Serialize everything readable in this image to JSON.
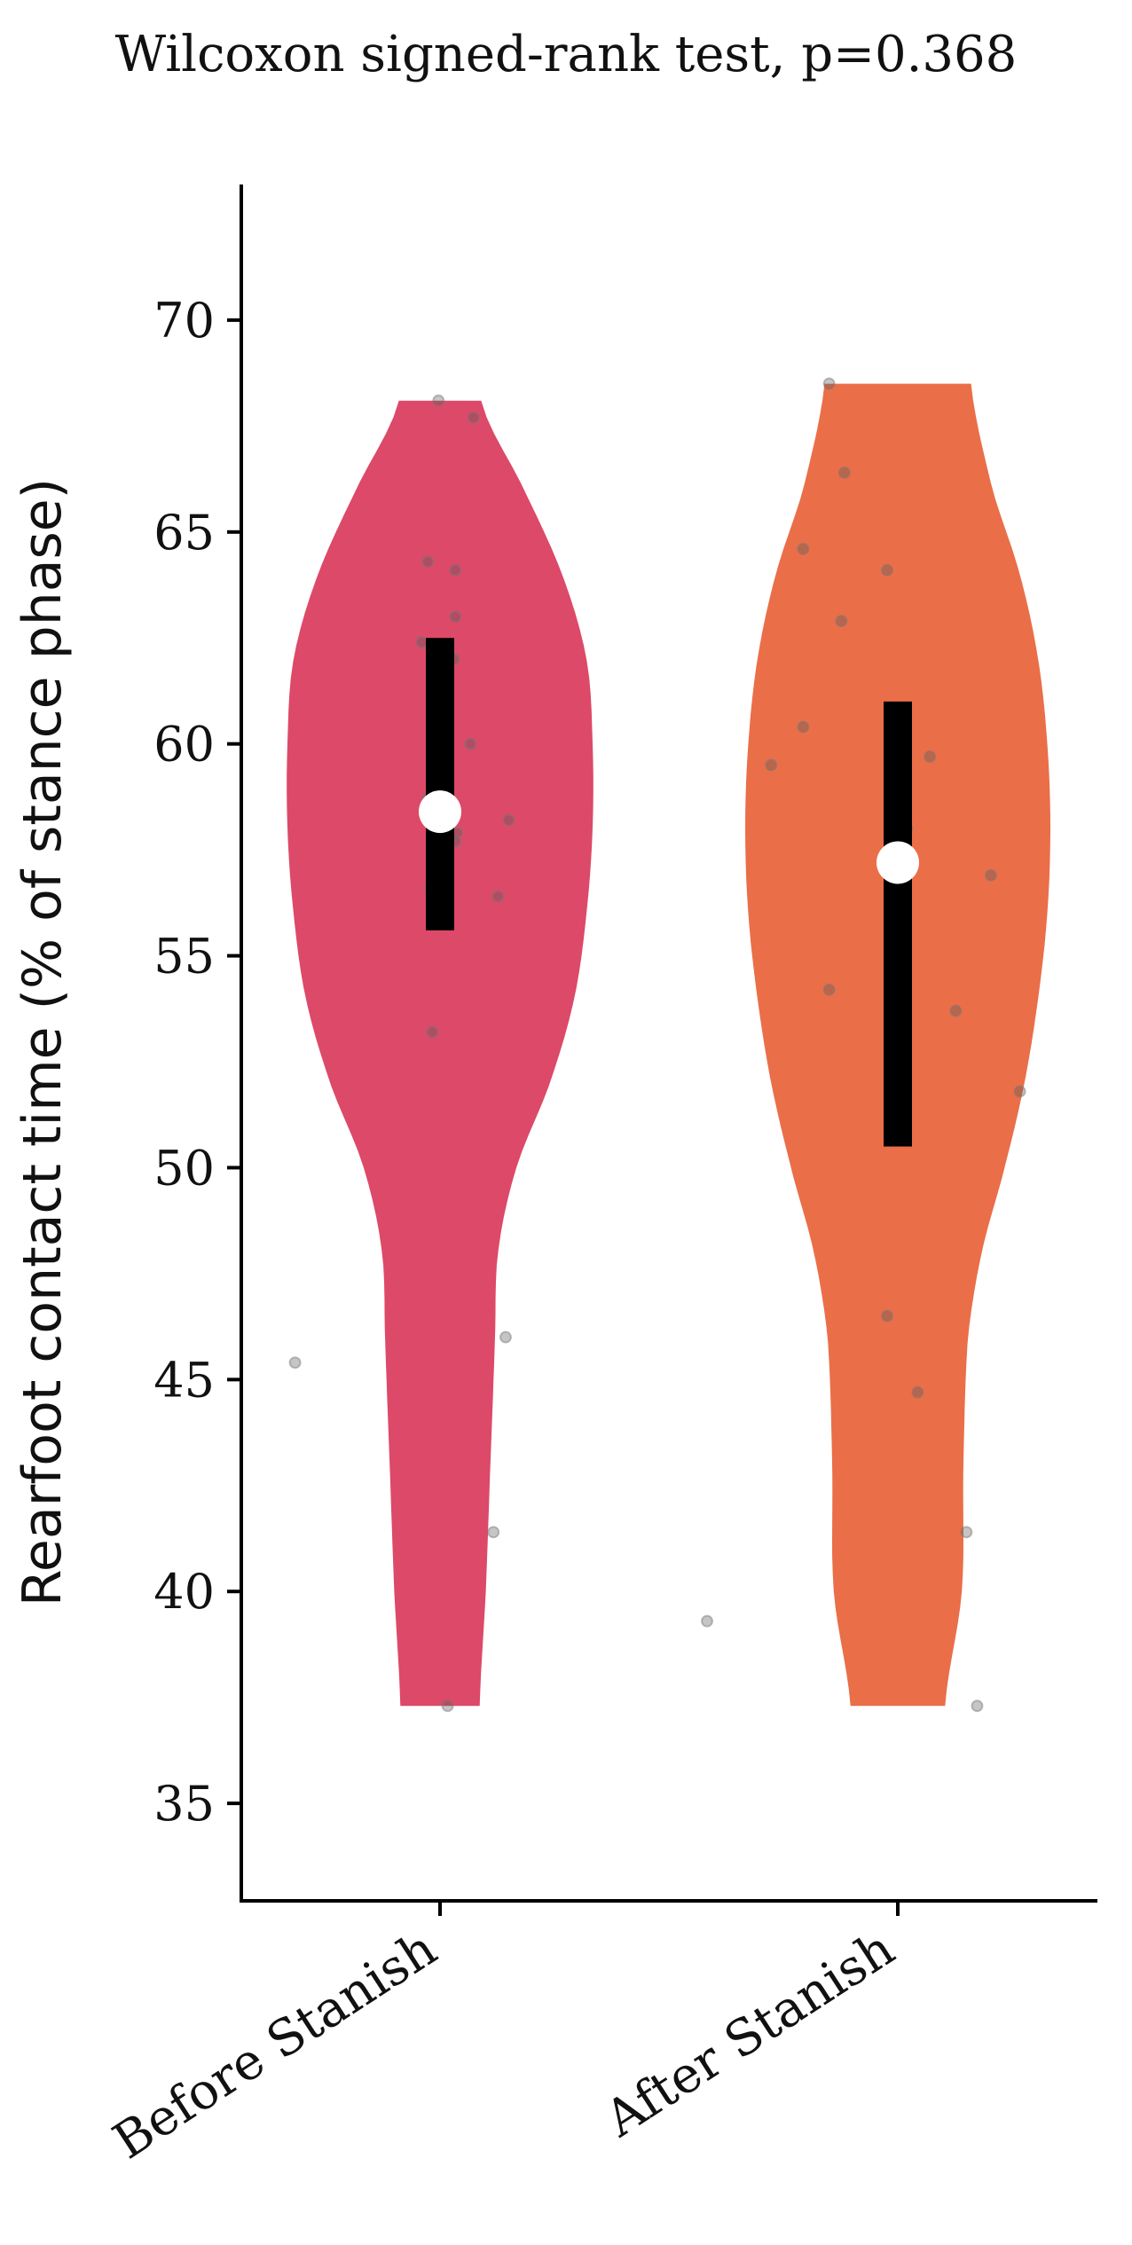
{
  "chart_data": {
    "type": "violin",
    "title": "Wilcoxon signed-rank test, p=0.368",
    "ylabel": "Rearfoot contact time (% of stance phase)",
    "xlabel": "",
    "ylim": [
      32.7,
      73.2
    ],
    "yticks": [
      35,
      40,
      45,
      50,
      55,
      60,
      65,
      70
    ],
    "categories": [
      "Before Stanish",
      "After Stanish"
    ],
    "grid": false,
    "series": [
      {
        "color": "#dd4968",
        "min": 37.3,
        "max": 68.1,
        "median": 58.4,
        "q1": 55.6,
        "q3": 62.5,
        "density": [
          [
            37.3,
            0.26
          ],
          [
            40.0,
            0.3
          ],
          [
            43.0,
            0.33
          ],
          [
            46.0,
            0.36
          ],
          [
            48.0,
            0.38
          ],
          [
            50.0,
            0.5
          ],
          [
            52.0,
            0.72
          ],
          [
            54.0,
            0.88
          ],
          [
            56.0,
            0.96
          ],
          [
            58.0,
            1.0
          ],
          [
            60.0,
            1.0
          ],
          [
            62.0,
            0.96
          ],
          [
            64.0,
            0.8
          ],
          [
            66.0,
            0.55
          ],
          [
            68.1,
            0.27
          ]
        ],
        "points": [
          [
            -0.01,
            68.1
          ],
          [
            0.22,
            67.7
          ],
          [
            -0.08,
            64.3
          ],
          [
            0.1,
            64.1
          ],
          [
            0.1,
            63.0
          ],
          [
            -0.12,
            62.4
          ],
          [
            0.09,
            62.0
          ],
          [
            0.2,
            60.0
          ],
          [
            -0.08,
            58.7
          ],
          [
            0.11,
            57.9
          ],
          [
            0.1,
            57.7
          ],
          [
            0.45,
            58.2
          ],
          [
            -0.06,
            56.6
          ],
          [
            0.38,
            56.4
          ],
          [
            -0.05,
            53.2
          ],
          [
            0.43,
            46.0
          ],
          [
            -0.95,
            45.4
          ],
          [
            0.35,
            41.4
          ],
          [
            0.05,
            37.3
          ]
        ]
      },
      {
        "color": "#ea6e48",
        "min": 37.3,
        "max": 68.5,
        "median": 57.2,
        "q1": 50.5,
        "q3": 61.0,
        "density": [
          [
            37.3,
            0.31
          ],
          [
            40.0,
            0.42
          ],
          [
            43.0,
            0.43
          ],
          [
            46.0,
            0.46
          ],
          [
            48.0,
            0.55
          ],
          [
            50.0,
            0.7
          ],
          [
            52.0,
            0.83
          ],
          [
            54.0,
            0.92
          ],
          [
            56.0,
            0.98
          ],
          [
            58.0,
            1.0
          ],
          [
            60.0,
            0.98
          ],
          [
            62.0,
            0.92
          ],
          [
            64.0,
            0.8
          ],
          [
            66.0,
            0.62
          ],
          [
            68.5,
            0.48
          ]
        ],
        "points": [
          [
            -0.45,
            68.5
          ],
          [
            -0.35,
            66.4
          ],
          [
            -0.62,
            64.6
          ],
          [
            -0.07,
            64.1
          ],
          [
            -0.37,
            62.9
          ],
          [
            -0.62,
            60.4
          ],
          [
            -0.83,
            59.5
          ],
          [
            0.21,
            59.7
          ],
          [
            -0.05,
            57.5
          ],
          [
            0.06,
            58.0
          ],
          [
            0.61,
            56.9
          ],
          [
            -0.45,
            54.2
          ],
          [
            0.38,
            53.7
          ],
          [
            0.8,
            51.8
          ],
          [
            -0.07,
            46.5
          ],
          [
            0.13,
            44.7
          ],
          [
            0.45,
            41.4
          ],
          [
            -1.25,
            39.3
          ],
          [
            0.52,
            37.3
          ]
        ]
      }
    ]
  }
}
